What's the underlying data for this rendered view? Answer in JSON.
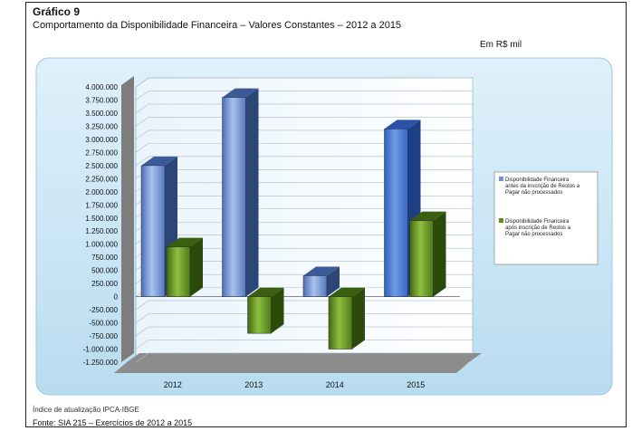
{
  "title": "Gráfico 9",
  "subtitle": "Comportamento da Disponibilidade Financeira – Valores Constantes – 2012 a 2015",
  "unit": "Em R$ mil",
  "note": "Índice de atualização IPCA-IBGE",
  "source": "Fonte: SIA 215 – Exercícios de 2012 a 2015",
  "chart_data": {
    "type": "bar",
    "categories": [
      "2012",
      "2013",
      "2014",
      "2015"
    ],
    "series": [
      {
        "name": "Disponibilidade Financeira antes da inscrição de Restos a Pagar não processados",
        "values": [
          2500000,
          3800000,
          400000,
          3200000
        ],
        "color": "#6f93d6"
      },
      {
        "name": "Disponibilidade Financeira após inscrição de Restos a Pagar não processados",
        "values": [
          950000,
          -700000,
          -1000000,
          1450000
        ],
        "color": "#5f8f23"
      }
    ],
    "ylim": [
      -1250000,
      4000000
    ],
    "yticks": [
      "4.000.000",
      "3.750.000",
      "3.500.000",
      "3.250.000",
      "3.000.000",
      "2.750.000",
      "2.500.000",
      "2.250.000",
      "2.000.000",
      "1.750.000",
      "1.500.000",
      "1.250.000",
      "1.000.000",
      "750.000",
      "500.000",
      "250.000",
      "0",
      "-250.000",
      "-500.000",
      "-750.000",
      "-1.000.000",
      "-1.250.000"
    ],
    "grid": true,
    "legend": "right"
  }
}
